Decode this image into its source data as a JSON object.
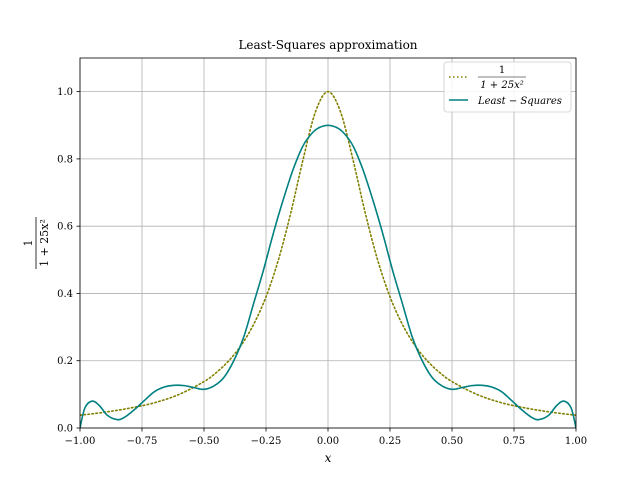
{
  "chart_data": {
    "type": "line",
    "title": "Least-Squares approximation",
    "xlabel": "x",
    "ylabel": {
      "numerator": "1",
      "denominator": "1 + 25x²"
    },
    "xlim": [
      -1.0,
      1.0
    ],
    "ylim": [
      0.0,
      1.1
    ],
    "xticks": [
      "−1.00",
      "−0.75",
      "−0.50",
      "−0.25",
      "0.00",
      "0.25",
      "0.50",
      "0.75",
      "1.00"
    ],
    "xtick_values": [
      -1.0,
      -0.75,
      -0.5,
      -0.25,
      0.0,
      0.25,
      0.5,
      0.75,
      1.0
    ],
    "yticks": [
      "0.0",
      "0.2",
      "0.4",
      "0.6",
      "0.8",
      "1.0"
    ],
    "ytick_values": [
      0.0,
      0.2,
      0.4,
      0.6,
      0.8,
      1.0
    ],
    "grid": true,
    "legend_position": "top-right",
    "series": [
      {
        "name": "1 / (1 + 25x²)",
        "legend_numerator": "1",
        "legend_denominator": "1 + 25x²",
        "color": "#808000",
        "style": "dotted",
        "x": [
          -1.0,
          -0.9,
          -0.8,
          -0.7,
          -0.6,
          -0.5,
          -0.45,
          -0.4,
          -0.35,
          -0.3,
          -0.25,
          -0.2,
          -0.15,
          -0.1,
          -0.05,
          0.0,
          0.05,
          0.1,
          0.15,
          0.2,
          0.25,
          0.3,
          0.35,
          0.4,
          0.45,
          0.5,
          0.6,
          0.7,
          0.8,
          0.9,
          1.0
        ],
        "y": [
          0.038,
          0.047,
          0.059,
          0.075,
          0.1,
          0.138,
          0.165,
          0.2,
          0.246,
          0.308,
          0.39,
          0.5,
          0.64,
          0.8,
          0.941,
          1.0,
          0.941,
          0.8,
          0.64,
          0.5,
          0.39,
          0.308,
          0.246,
          0.2,
          0.165,
          0.138,
          0.1,
          0.075,
          0.059,
          0.047,
          0.038
        ]
      },
      {
        "name": "Least − Squares",
        "color": "#008080",
        "style": "solid",
        "x": [
          -1.0,
          -0.98,
          -0.95,
          -0.92,
          -0.89,
          -0.85,
          -0.82,
          -0.78,
          -0.74,
          -0.7,
          -0.66,
          -0.62,
          -0.58,
          -0.54,
          -0.5,
          -0.46,
          -0.42,
          -0.38,
          -0.34,
          -0.3,
          -0.26,
          -0.22,
          -0.18,
          -0.14,
          -0.1,
          -0.06,
          -0.03,
          0.0,
          0.03,
          0.06,
          0.1,
          0.14,
          0.18,
          0.22,
          0.26,
          0.3,
          0.34,
          0.38,
          0.42,
          0.46,
          0.5,
          0.54,
          0.58,
          0.62,
          0.66,
          0.7,
          0.74,
          0.78,
          0.82,
          0.85,
          0.89,
          0.92,
          0.95,
          0.98,
          1.0
        ],
        "y": [
          0.0,
          0.06,
          0.08,
          0.065,
          0.038,
          0.025,
          0.032,
          0.055,
          0.082,
          0.108,
          0.122,
          0.127,
          0.126,
          0.12,
          0.115,
          0.125,
          0.15,
          0.2,
          0.27,
          0.37,
          0.47,
          0.58,
          0.68,
          0.77,
          0.84,
          0.88,
          0.895,
          0.9,
          0.895,
          0.88,
          0.84,
          0.77,
          0.68,
          0.58,
          0.47,
          0.37,
          0.27,
          0.2,
          0.15,
          0.125,
          0.115,
          0.12,
          0.126,
          0.127,
          0.122,
          0.108,
          0.082,
          0.055,
          0.032,
          0.025,
          0.038,
          0.065,
          0.08,
          0.06,
          0.0
        ]
      }
    ]
  }
}
